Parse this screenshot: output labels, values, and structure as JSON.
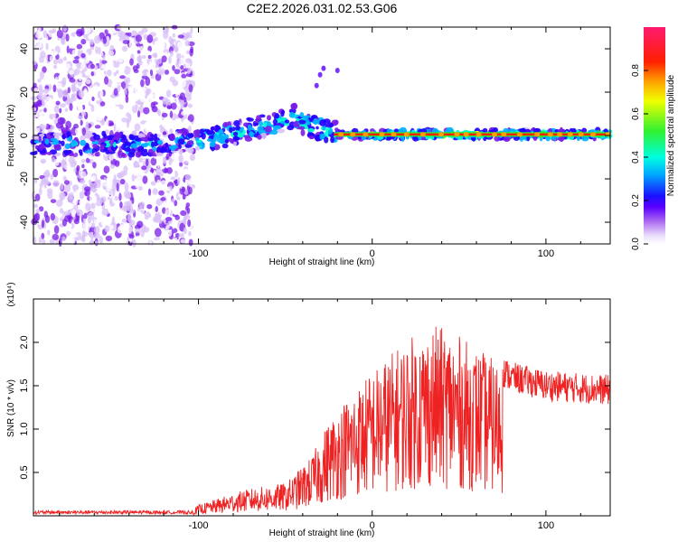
{
  "title": "C2E2.2026.031.02.53.G06",
  "chart_data": [
    {
      "type": "heatmap",
      "xlabel": "Height of straight line (km)",
      "ylabel": "Frequency (Hz)",
      "xlim": [
        -195,
        137
      ],
      "ylim": [
        -50,
        50
      ],
      "xticks": [
        -100,
        0,
        100
      ],
      "xtick_labels": [
        "-100",
        "0",
        "100"
      ],
      "yticks": [
        -40,
        -20,
        0,
        20,
        40
      ],
      "ytick_labels": [
        "-40",
        "-20",
        "0",
        "20",
        "40"
      ],
      "colorbar": {
        "label": "Normalized spectral amplitude",
        "range": [
          0.0,
          1.0
        ],
        "ticks": [
          0.0,
          0.2,
          0.4,
          0.6,
          0.8
        ],
        "tick_labels": [
          "0.0",
          "0.2",
          "0.4",
          "0.6",
          "0.8"
        ],
        "colors": [
          "#ffffff",
          "#d8c0f8",
          "#7a1ce8",
          "#2400ff",
          "#00b0ff",
          "#00ffd0",
          "#2ee82e",
          "#ffff00",
          "#ff8000",
          "#ff0000",
          "#ff2070"
        ]
      },
      "ridge": [
        {
          "x": -195,
          "y": -4
        },
        {
          "x": -125,
          "y": -4
        },
        {
          "x": -100,
          "y": -2
        },
        {
          "x": -85,
          "y": 0
        },
        {
          "x": -70,
          "y": 3
        },
        {
          "x": -55,
          "y": 6
        },
        {
          "x": -45,
          "y": 9
        },
        {
          "x": -40,
          "y": 5
        },
        {
          "x": -30,
          "y": 3
        },
        {
          "x": -20,
          "y": 1
        },
        {
          "x": 0,
          "y": 0.5
        },
        {
          "x": 50,
          "y": 0.5
        },
        {
          "x": 137,
          "y": 0.5
        }
      ]
    },
    {
      "type": "line",
      "xlabel": "Height of straight line (km)",
      "ylabel": "SNR (10 * v/v)",
      "multiplier_label": "(x10⁴)",
      "xlim": [
        -195,
        137
      ],
      "ylim": [
        0,
        2.5
      ],
      "xticks": [
        -100,
        0,
        100
      ],
      "xtick_labels": [
        "-100",
        "0",
        "100"
      ],
      "yticks": [
        0.5,
        1.0,
        1.5,
        2.0
      ],
      "ytick_labels": [
        "0.5",
        "1.0",
        "1.5",
        "2.0"
      ],
      "color": "#ee2222",
      "envelope": [
        {
          "x": -195,
          "y": 0.04
        },
        {
          "x": -105,
          "y": 0.04
        },
        {
          "x": -100,
          "y": 0.12
        },
        {
          "x": -90,
          "y": 0.18
        },
        {
          "x": -80,
          "y": 0.25
        },
        {
          "x": -70,
          "y": 0.3
        },
        {
          "x": -50,
          "y": 0.36
        },
        {
          "x": -45,
          "y": 0.45
        },
        {
          "x": -35,
          "y": 0.65
        },
        {
          "x": -30,
          "y": 0.85
        },
        {
          "x": -25,
          "y": 1.05
        },
        {
          "x": -15,
          "y": 1.3
        },
        {
          "x": 0,
          "y": 1.6
        },
        {
          "x": 20,
          "y": 1.95
        },
        {
          "x": 35,
          "y": 2.1
        },
        {
          "x": 45,
          "y": 2.05
        },
        {
          "x": 60,
          "y": 1.85
        },
        {
          "x": 80,
          "y": 1.6
        },
        {
          "x": 100,
          "y": 1.5
        },
        {
          "x": 137,
          "y": 1.45
        }
      ]
    }
  ]
}
